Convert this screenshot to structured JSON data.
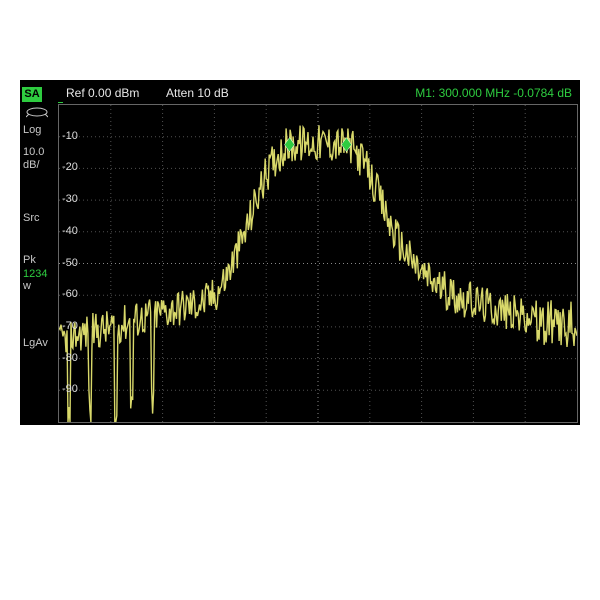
{
  "mode_badge": "SA",
  "header": {
    "ref": "Ref 0.00 dBm",
    "atten": "Atten 10 dB",
    "marker": "M1:  300.000 MHz  -0.0784 dB"
  },
  "sidebar": {
    "log": "Log",
    "scale_val": "10.0",
    "scale_unit": "dB/",
    "src": "Src",
    "pk": "Pk",
    "trace": "1234",
    "w": "w",
    "lgav": "LgAv"
  },
  "chart": {
    "type": "line",
    "xlim": [
      0,
      100
    ],
    "ylim": [
      -100,
      0
    ],
    "ytick_step": 10,
    "xtick_step": 10,
    "y_labels": [
      -10,
      -20,
      -30,
      -40,
      -50,
      -60,
      -70,
      -80,
      -90
    ],
    "grid_color": "#505050",
    "grid_color_light": "#888888",
    "border_color": "#666666",
    "trace_color": "#d8d86a",
    "trace_width": 1.4,
    "marker_color": "#2ecc40",
    "background_color": "#000000",
    "text_color": "#dddddd",
    "header_color": "#e8e8e8",
    "marker_header_color": "#2ecc40",
    "envelope": [
      [
        0,
        -74
      ],
      [
        4,
        -72
      ],
      [
        8,
        -71
      ],
      [
        12,
        -69
      ],
      [
        16,
        -67
      ],
      [
        20,
        -65
      ],
      [
        24,
        -63.5
      ],
      [
        28,
        -62
      ],
      [
        30,
        -60
      ],
      [
        32,
        -55
      ],
      [
        34,
        -48
      ],
      [
        36,
        -40
      ],
      [
        38,
        -30
      ],
      [
        40,
        -22
      ],
      [
        42,
        -16
      ],
      [
        44,
        -13
      ],
      [
        46,
        -12.2
      ],
      [
        48,
        -12
      ],
      [
        50,
        -12
      ],
      [
        52,
        -12
      ],
      [
        54,
        -12.2
      ],
      [
        56,
        -13
      ],
      [
        58,
        -16
      ],
      [
        60,
        -22
      ],
      [
        62,
        -30
      ],
      [
        64,
        -38
      ],
      [
        66,
        -44
      ],
      [
        68,
        -49
      ],
      [
        70,
        -53
      ],
      [
        74,
        -58
      ],
      [
        78,
        -61
      ],
      [
        82,
        -63
      ],
      [
        86,
        -65
      ],
      [
        90,
        -67
      ],
      [
        94,
        -69
      ],
      [
        97,
        -70
      ],
      [
        100,
        -71
      ]
    ],
    "noise_floor": -72,
    "noise_jitter_amp": 12,
    "noise_spikes_deep": [
      2,
      6,
      11,
      14,
      18
    ],
    "markers": [
      {
        "x": 44.5,
        "y": -12.5
      },
      {
        "x": 55.5,
        "y": -12.5
      }
    ]
  }
}
